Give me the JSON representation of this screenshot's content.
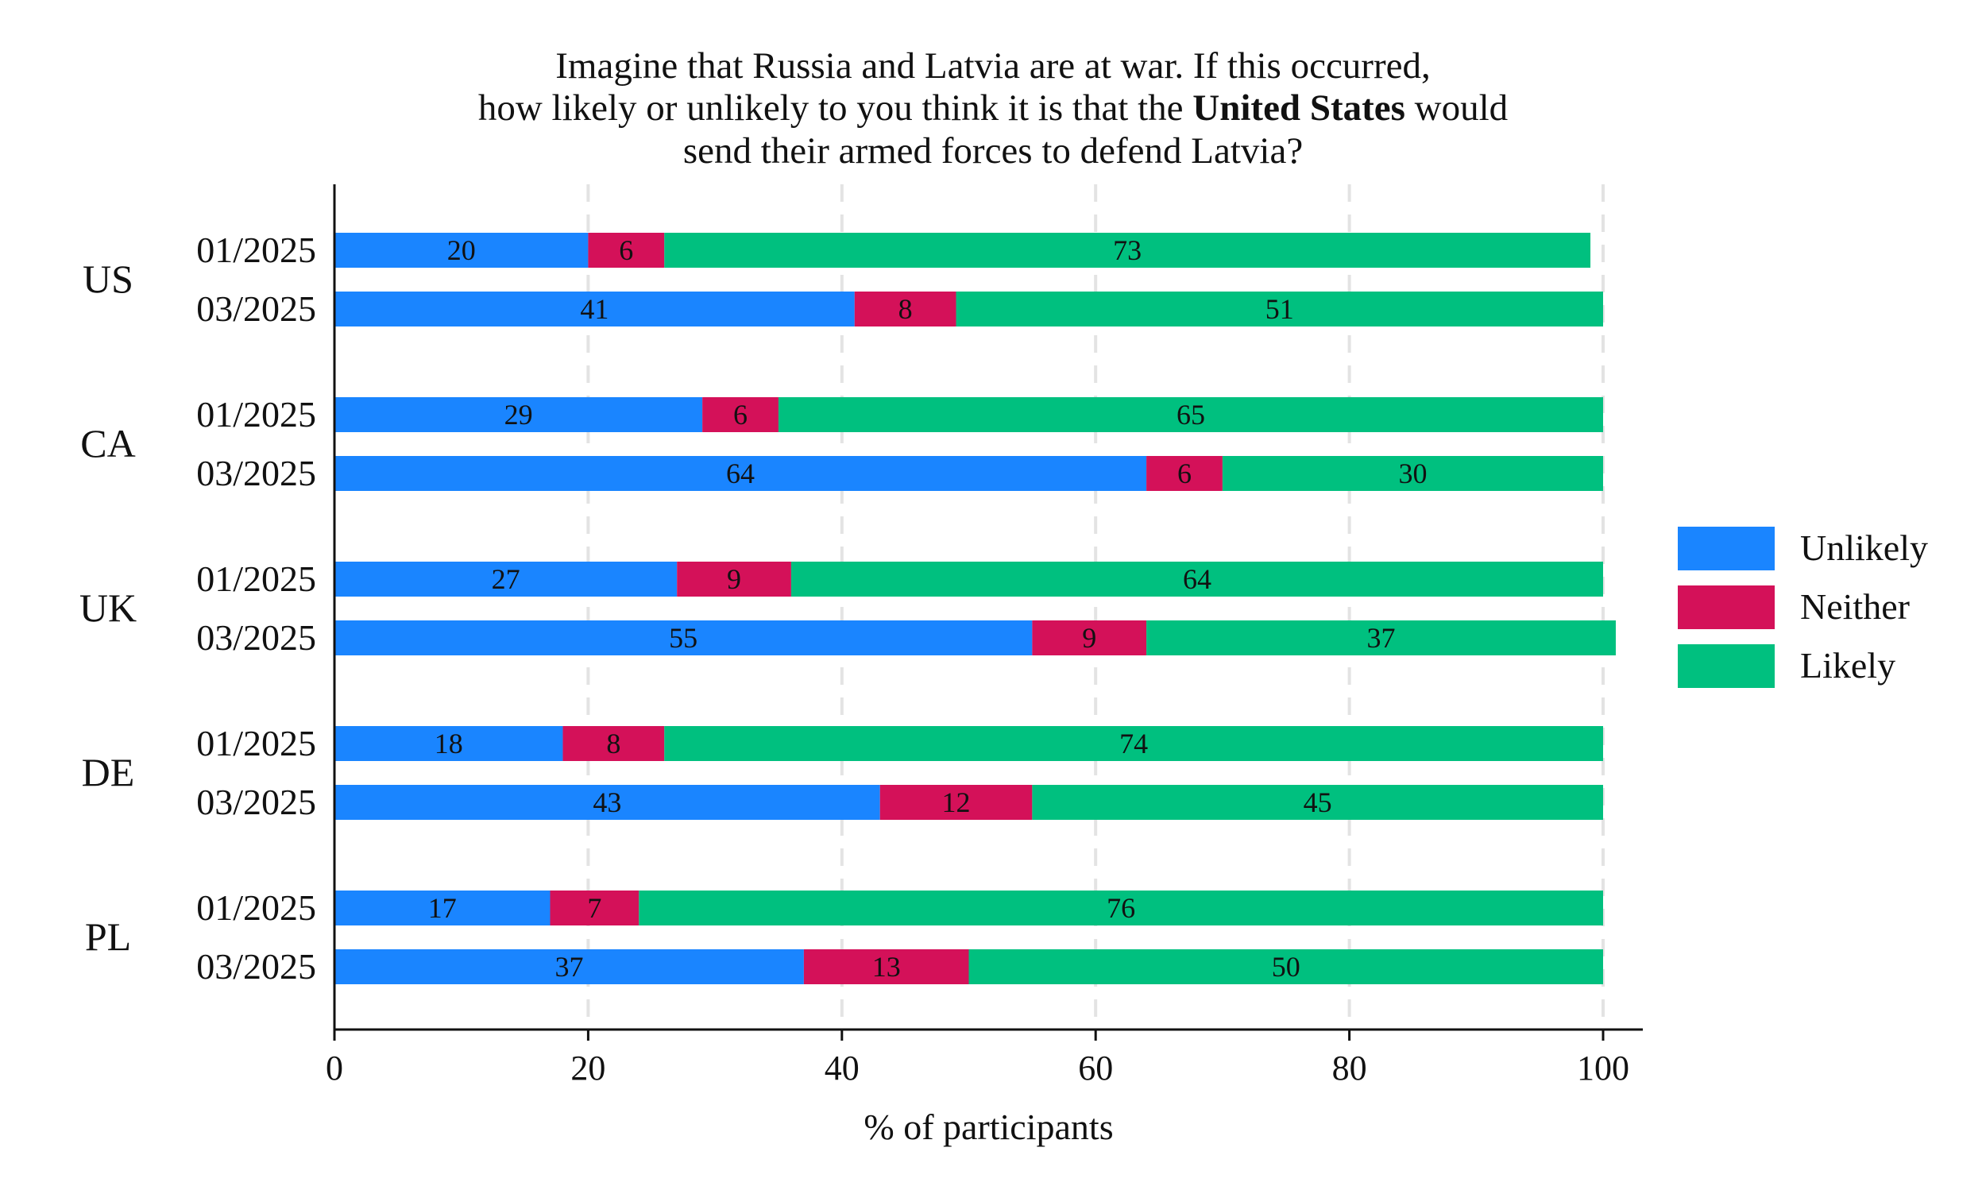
{
  "chart_data": {
    "type": "bar",
    "orientation": "horizontal",
    "stacked": true,
    "title_lines": [
      {
        "parts": [
          {
            "text": "Imagine that Russia and Latvia are at war. If this occurred,",
            "bold": false
          }
        ]
      },
      {
        "parts": [
          {
            "text": "how likely or unlikely to you think it is that the ",
            "bold": false
          },
          {
            "text": "United States",
            "bold": true
          },
          {
            "text": " would",
            "bold": false
          }
        ]
      },
      {
        "parts": [
          {
            "text": "send their armed forces to defend Latvia?",
            "bold": false
          }
        ]
      }
    ],
    "xlabel": "% of participants",
    "xlim": [
      0,
      100
    ],
    "xticks": [
      0,
      20,
      40,
      60,
      80,
      100
    ],
    "grid": "vertical dashed",
    "legend_position": "right",
    "series": [
      {
        "name": "Unlikely",
        "color": "#1a85ff"
      },
      {
        "name": "Neither",
        "color": "#d41159"
      },
      {
        "name": "Likely",
        "color": "#00c07f"
      }
    ],
    "groups": [
      {
        "label": "US",
        "rows": [
          {
            "label": "01/2025",
            "values": [
              20,
              6,
              73
            ]
          },
          {
            "label": "03/2025",
            "values": [
              41,
              8,
              51
            ]
          }
        ]
      },
      {
        "label": "CA",
        "rows": [
          {
            "label": "01/2025",
            "values": [
              29,
              6,
              65
            ]
          },
          {
            "label": "03/2025",
            "values": [
              64,
              6,
              30
            ]
          }
        ]
      },
      {
        "label": "UK",
        "rows": [
          {
            "label": "01/2025",
            "values": [
              27,
              9,
              64
            ]
          },
          {
            "label": "03/2025",
            "values": [
              55,
              9,
              37
            ]
          }
        ]
      },
      {
        "label": "DE",
        "rows": [
          {
            "label": "01/2025",
            "values": [
              18,
              8,
              74
            ]
          },
          {
            "label": "03/2025",
            "values": [
              43,
              12,
              45
            ]
          }
        ]
      },
      {
        "label": "PL",
        "rows": [
          {
            "label": "01/2025",
            "values": [
              17,
              7,
              76
            ]
          },
          {
            "label": "03/2025",
            "values": [
              37,
              13,
              50
            ]
          }
        ]
      }
    ]
  }
}
